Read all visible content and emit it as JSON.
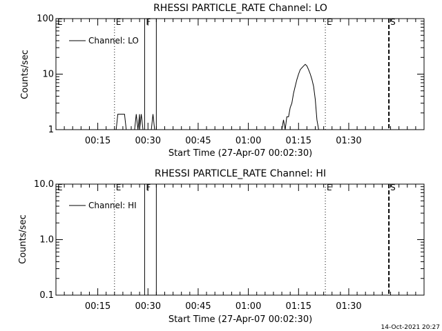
{
  "footer": {
    "timestamp": "14-Oct-2021 20:27"
  },
  "chart_data": [
    {
      "type": "line",
      "title": "RHESSI PARTICLE_RATE Channel: LO",
      "xlabel": "Start Time (27-Apr-07 00:02:30)",
      "ylabel": "Counts/sec",
      "yscale": "log",
      "ylim": [
        1,
        100
      ],
      "yticks": [
        1,
        10,
        100
      ],
      "ytick_labels": [
        "1",
        "10",
        "100"
      ],
      "xlim_min": [
        0,
        110
      ],
      "xticks_min": [
        12.5,
        27.5,
        42.5,
        57.5,
        72.5,
        87.5
      ],
      "xtick_labels": [
        "00:15",
        "00:30",
        "00:45",
        "01:00",
        "01:15",
        "01:30"
      ],
      "legend": {
        "position": "top-left",
        "entries": [
          "Channel: LO"
        ]
      },
      "flags": [
        {
          "label": "E",
          "x": 0,
          "style": "dotted"
        },
        {
          "label": "E",
          "x": 17.5,
          "style": "dotted"
        },
        {
          "label": "F",
          "x": 26.5,
          "style": "solid"
        },
        {
          "label": "",
          "x": 30,
          "style": "solid"
        },
        {
          "label": "E",
          "x": 80.5,
          "style": "dotted"
        },
        {
          "label": "S",
          "x": 99.5,
          "style": "dashed"
        }
      ],
      "series": [
        {
          "name": "Channel: LO",
          "x": [
            18,
            18.5,
            20,
            20.5,
            21,
            23.5,
            24,
            24.5,
            25,
            25,
            25.5,
            26,
            28.5,
            29,
            29.5,
            67.5,
            68,
            68.5,
            69,
            69.5,
            70,
            70.5,
            71,
            71.5,
            72,
            72.5,
            73,
            73.5,
            74,
            74.5,
            75,
            75.5,
            76,
            76.5,
            77,
            77.5,
            78,
            78.5
          ],
          "y": [
            1,
            1.9,
            1.9,
            1.9,
            1,
            1,
            1.9,
            1,
            1.9,
            1,
            1.9,
            1,
            1,
            1.9,
            1,
            1,
            1.5,
            1,
            1.7,
            1.7,
            2.5,
            3,
            4.5,
            6,
            8,
            10,
            12,
            13,
            14,
            15,
            14,
            12,
            10,
            8,
            6,
            3.5,
            1.5,
            1
          ]
        }
      ]
    },
    {
      "type": "line",
      "title": "RHESSI PARTICLE_RATE Channel: HI",
      "xlabel": "Start Time (27-Apr-07 00:02:30)",
      "ylabel": "Counts/sec",
      "yscale": "log",
      "ylim": [
        0.1,
        10
      ],
      "yticks": [
        0.1,
        1,
        10
      ],
      "ytick_labels": [
        "0.1",
        "1.0",
        "10.0"
      ],
      "xlim_min": [
        0,
        110
      ],
      "xticks_min": [
        12.5,
        27.5,
        42.5,
        57.5,
        72.5,
        87.5
      ],
      "xtick_labels": [
        "00:15",
        "00:30",
        "00:45",
        "01:00",
        "01:15",
        "01:30"
      ],
      "legend": {
        "position": "top-left",
        "entries": [
          "Channel: HI"
        ]
      },
      "flags": [
        {
          "label": "E",
          "x": 0,
          "style": "dotted"
        },
        {
          "label": "E",
          "x": 17.5,
          "style": "dotted"
        },
        {
          "label": "F",
          "x": 26.5,
          "style": "solid"
        },
        {
          "label": "",
          "x": 30,
          "style": "solid"
        },
        {
          "label": "E",
          "x": 80.5,
          "style": "dotted"
        },
        {
          "label": "S",
          "x": 99.5,
          "style": "dashed"
        }
      ],
      "series": [
        {
          "name": "Channel: HI",
          "x": [],
          "y": []
        }
      ]
    }
  ]
}
